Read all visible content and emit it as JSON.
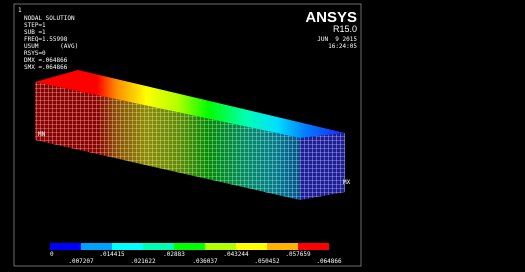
{
  "window_number": "1",
  "info": [
    "NODAL SOLUTION",
    "STEP=1",
    "SUB =1",
    "FREQ=1.55998",
    "USUM      (AVG)",
    "RSYS=0",
    "DMX =.064866",
    "SMX =.064866"
  ],
  "logo": "ANSYS",
  "version": "R15.0",
  "date": "JUN  9 2015",
  "time": "16:24:05",
  "markers": [
    "MN",
    "MX"
  ],
  "legend": {
    "upper": [
      "0",
      ".014415",
      ".02883",
      ".043244",
      ".057659"
    ],
    "lower": [
      ".007207",
      ".021622",
      ".036037",
      ".050452",
      ".064866"
    ]
  }
}
